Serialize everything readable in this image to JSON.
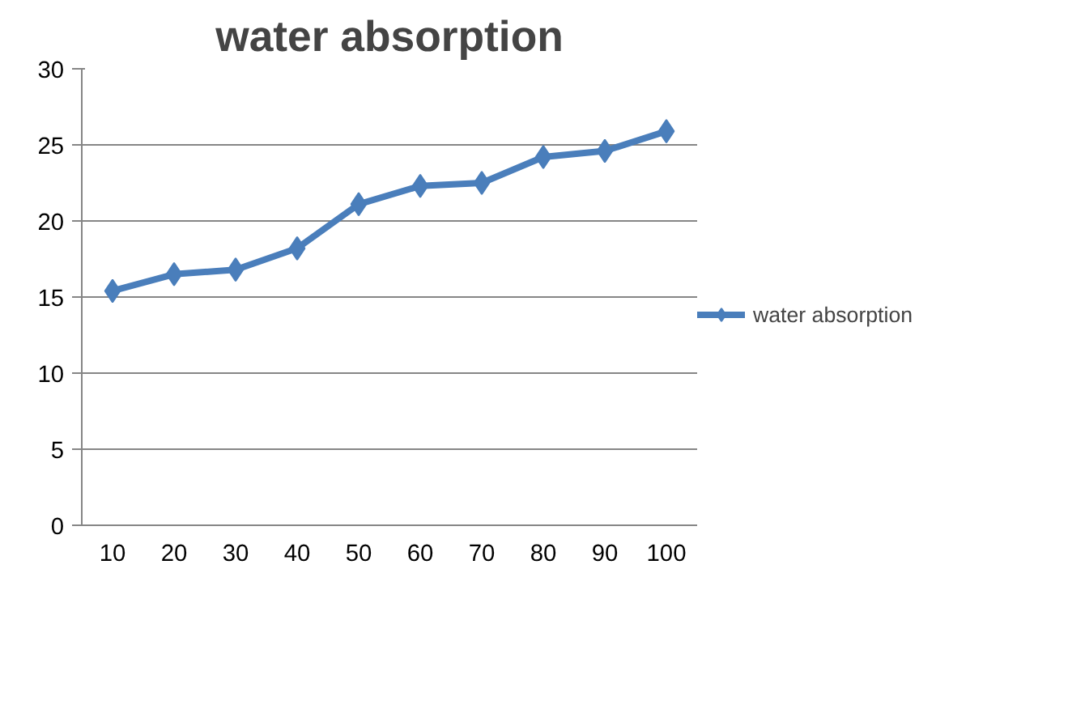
{
  "chart_data": {
    "type": "line",
    "title": "water absorption",
    "categories": [
      "10",
      "20",
      "30",
      "40",
      "50",
      "60",
      "70",
      "80",
      "90",
      "100"
    ],
    "series": [
      {
        "name": "water absorption",
        "color": "#4a7ebb",
        "values": [
          15.4,
          16.5,
          16.8,
          18.2,
          21.1,
          22.3,
          22.5,
          24.2,
          24.6,
          25.9
        ]
      }
    ],
    "ylim": [
      0,
      30
    ],
    "yticks": [
      0,
      5,
      10,
      15,
      20,
      25,
      30
    ],
    "grid": "y",
    "legend": "right",
    "marker": "diamond",
    "line_style": "solid"
  }
}
